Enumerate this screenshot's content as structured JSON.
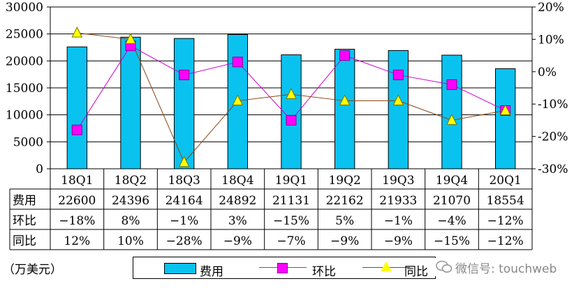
{
  "chart_data": {
    "type": "bar",
    "categories": [
      "18Q1",
      "18Q2",
      "18Q3",
      "18Q4",
      "19Q1",
      "19Q2",
      "19Q3",
      "19Q4",
      "20Q1"
    ],
    "y_left_ticks": [
      "30000",
      "25000",
      "20000",
      "15000",
      "10000",
      "5000",
      "0"
    ],
    "y_right_ticks": [
      "20%",
      "10%",
      "0%",
      "-10%",
      "-20%",
      "-30%"
    ],
    "ylim_left": [
      0,
      30000
    ],
    "ylim_right": [
      -30,
      20
    ],
    "series": [
      {
        "name": "费用",
        "type": "bar",
        "axis": "left",
        "color": "#0ac2f0",
        "values": [
          22600,
          24396,
          24164,
          24892,
          21131,
          22162,
          21933,
          21070,
          18554
        ]
      },
      {
        "name": "环比",
        "type": "line",
        "axis": "right",
        "color": "#ff00ff",
        "marker": "square",
        "values": [
          -18,
          8,
          -1,
          3,
          -15,
          5,
          -1,
          -4,
          -12
        ]
      },
      {
        "name": "同比",
        "type": "line",
        "axis": "right",
        "color": "#ffff00",
        "marker": "triangle",
        "values": [
          12,
          10,
          -28,
          -9,
          -7,
          -9,
          -9,
          -15,
          -12
        ]
      }
    ],
    "grid": true,
    "legend_position": "bottom"
  },
  "table": {
    "rows": [
      {
        "label": "费用",
        "cells": [
          "22600",
          "24396",
          "24164",
          "24892",
          "21131",
          "22162",
          "21933",
          "21070",
          "18554"
        ]
      },
      {
        "label": "环比",
        "cells": [
          "−18%",
          "8%",
          "−1%",
          "3%",
          "−15%",
          "5%",
          "−1%",
          "−4%",
          "−12%"
        ]
      },
      {
        "label": "同比",
        "cells": [
          "12%",
          "10%",
          "−28%",
          "−9%",
          "−7%",
          "−9%",
          "−9%",
          "−15%",
          "−12%"
        ]
      }
    ]
  },
  "unit_label": "（万美元）",
  "legend": {
    "bar": "费用",
    "line1": "环比",
    "line2": "同比"
  },
  "watermark": "微信号: touchweb"
}
